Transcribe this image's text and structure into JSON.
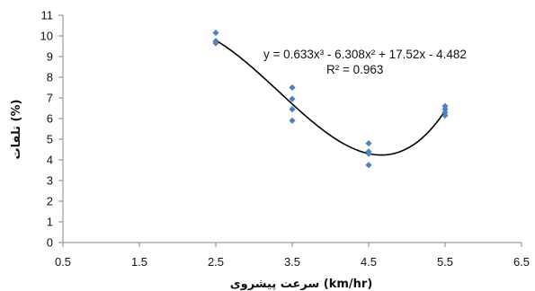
{
  "chart_data": {
    "type": "scatter",
    "title": "",
    "xlabel": "سرعت پیشروی (km/hr)",
    "ylabel": "تلفات (%)",
    "xlim": [
      0.5,
      6.5
    ],
    "ylim": [
      0,
      11
    ],
    "x_ticks": [
      "0.5",
      "1.5",
      "2.5",
      "3.5",
      "4.5",
      "5.5",
      "6.5"
    ],
    "y_ticks": [
      "0",
      "1",
      "2",
      "3",
      "4",
      "5",
      "6",
      "7",
      "8",
      "9",
      "10",
      "11"
    ],
    "grid": false,
    "series": [
      {
        "marker": "diamond",
        "color": "#4f81bd",
        "points": [
          {
            "x": 2.5,
            "y": 10.15
          },
          {
            "x": 2.5,
            "y": 9.75
          },
          {
            "x": 2.5,
            "y": 9.65
          },
          {
            "x": 3.5,
            "y": 7.5
          },
          {
            "x": 3.5,
            "y": 6.95
          },
          {
            "x": 3.5,
            "y": 6.45
          },
          {
            "x": 3.5,
            "y": 5.9
          },
          {
            "x": 4.5,
            "y": 4.8
          },
          {
            "x": 4.5,
            "y": 4.4
          },
          {
            "x": 4.5,
            "y": 4.3
          },
          {
            "x": 4.5,
            "y": 3.75
          },
          {
            "x": 5.5,
            "y": 6.6
          },
          {
            "x": 5.5,
            "y": 6.45
          },
          {
            "x": 5.5,
            "y": 6.3
          },
          {
            "x": 5.5,
            "y": 6.15
          }
        ]
      }
    ],
    "trendline": {
      "type": "polynomial",
      "coefficients": [
        0.633,
        -6.308,
        17.52,
        -4.482
      ],
      "x_range": [
        2.5,
        5.5
      ],
      "color": "#000000",
      "equation": "y = 0.633x³ - 6.308x² + 17.52x - 4.482",
      "r_squared": "R² = 0.963"
    }
  }
}
